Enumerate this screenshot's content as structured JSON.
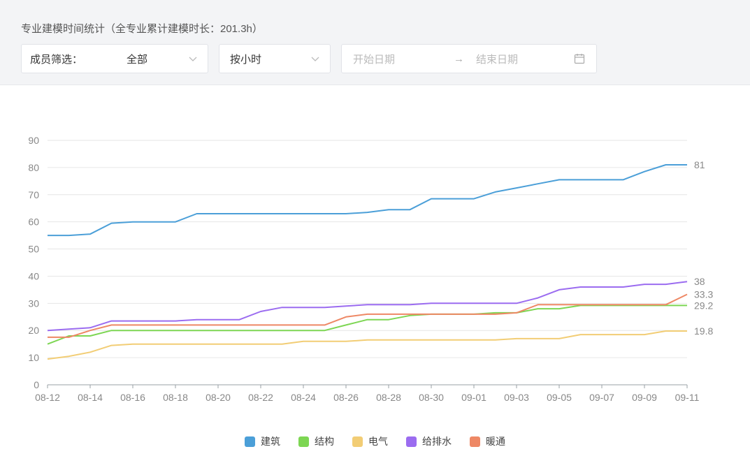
{
  "header": {
    "title": "专业建模时间统计（全专业累计建模时长：201.3h）",
    "member_filter": {
      "label": "成员筛选：",
      "value": "全部"
    },
    "unit_select": {
      "value": "按小时"
    },
    "date_range": {
      "start_placeholder": "开始日期",
      "arrow": "→",
      "end_placeholder": "结束日期"
    }
  },
  "chart_data": {
    "type": "line",
    "x": [
      "08-12",
      "08-13",
      "08-14",
      "08-15",
      "08-16",
      "08-17",
      "08-18",
      "08-19",
      "08-20",
      "08-21",
      "08-22",
      "08-23",
      "08-24",
      "08-25",
      "08-26",
      "08-27",
      "08-28",
      "08-29",
      "08-30",
      "08-31",
      "09-01",
      "09-02",
      "09-03",
      "09-04",
      "09-05",
      "09-06",
      "09-07",
      "09-08",
      "09-09",
      "09-10",
      "09-11"
    ],
    "x_tick_labels": [
      "08-12",
      "08-14",
      "08-16",
      "08-18",
      "08-20",
      "08-22",
      "08-24",
      "08-26",
      "08-28",
      "08-30",
      "09-01",
      "09-03",
      "09-05",
      "09-07",
      "09-09",
      "09-11"
    ],
    "y_ticks": [
      "0",
      "10",
      "20",
      "30",
      "40",
      "50",
      "60",
      "70",
      "80",
      "90"
    ],
    "ylim": [
      0,
      90
    ],
    "grid": "horizontal",
    "legend_position": "bottom-center",
    "series": [
      {
        "name": "建筑",
        "color": "#4b9fd8",
        "end_label": "81",
        "values": [
          55,
          55,
          55.5,
          59.5,
          60,
          60,
          60,
          63,
          63,
          63,
          63,
          63,
          63,
          63,
          63,
          63.5,
          64.5,
          64.5,
          68.5,
          68.5,
          68.5,
          71,
          72.5,
          74,
          75.5,
          75.5,
          75.5,
          75.5,
          78.5,
          81,
          81
        ]
      },
      {
        "name": "结构",
        "color": "#7dd653",
        "end_label": "29.2",
        "values": [
          15,
          18,
          18,
          20,
          20,
          20,
          20,
          20,
          20,
          20,
          20,
          20,
          20,
          20,
          22,
          24,
          24,
          25.5,
          26,
          26,
          26,
          26.5,
          26.5,
          28,
          28,
          29.2,
          29.2,
          29.2,
          29.2,
          29.2,
          29.2
        ]
      },
      {
        "name": "电气",
        "color": "#f2cd75",
        "end_label": "19.8",
        "values": [
          9.5,
          10.5,
          12,
          14.5,
          15,
          15,
          15,
          15,
          15,
          15,
          15,
          15,
          16,
          16,
          16,
          16.5,
          16.5,
          16.5,
          16.5,
          16.5,
          16.5,
          16.5,
          17,
          17,
          17,
          18.5,
          18.5,
          18.5,
          18.5,
          19.8,
          19.8
        ]
      },
      {
        "name": "给排水",
        "color": "#9b6cf0",
        "end_label": "38",
        "values": [
          20,
          20.5,
          21,
          23.5,
          23.5,
          23.5,
          23.5,
          24,
          24,
          24,
          27,
          28.5,
          28.5,
          28.5,
          29,
          29.5,
          29.5,
          29.5,
          30,
          30,
          30,
          30,
          30,
          32,
          35,
          36,
          36,
          36,
          37,
          37,
          38
        ]
      },
      {
        "name": "暖通",
        "color": "#ee8865",
        "end_label": "33.3",
        "values": [
          17.5,
          17.5,
          20,
          22,
          22,
          22,
          22,
          22,
          22,
          22,
          22,
          22,
          22,
          22,
          25,
          26,
          26,
          26,
          26,
          26,
          26,
          26,
          26.5,
          29.5,
          29.5,
          29.5,
          29.5,
          29.5,
          29.5,
          29.5,
          33.3
        ]
      }
    ]
  }
}
